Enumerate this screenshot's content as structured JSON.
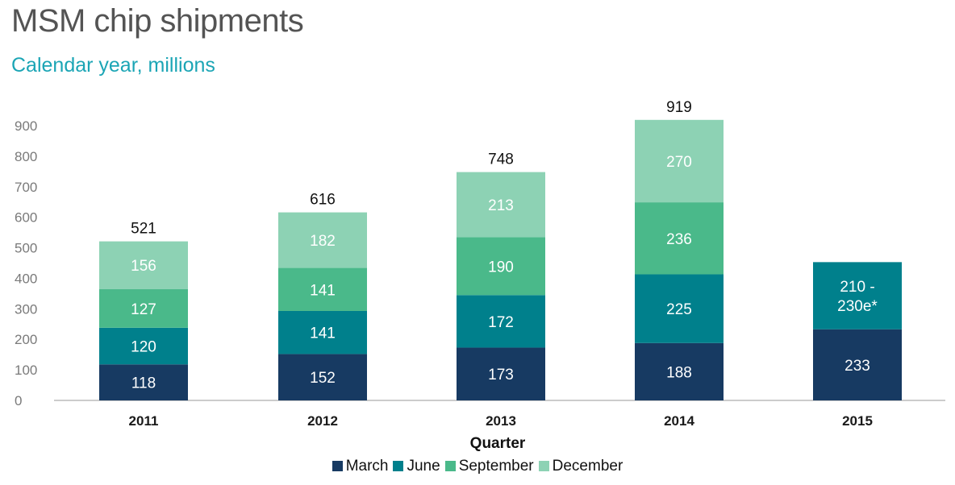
{
  "chart_data": {
    "type": "bar",
    "stacked": true,
    "title": "MSM chip shipments",
    "subtitle": "Calendar year, millions",
    "xlabel": "Quarter",
    "ylabel": "",
    "ylim": [
      0,
      900
    ],
    "yticks": [
      0,
      100,
      200,
      300,
      400,
      500,
      600,
      700,
      800,
      900
    ],
    "grid": false,
    "legend_position": "bottom",
    "categories": [
      "2011",
      "2012",
      "2013",
      "2014",
      "2015"
    ],
    "series": [
      {
        "name": "March",
        "color": "#173a62",
        "values": [
          118,
          152,
          173,
          188,
          233
        ],
        "labels": [
          "118",
          "152",
          "173",
          "188",
          "233"
        ]
      },
      {
        "name": "June",
        "color": "#00808c",
        "values": [
          120,
          141,
          172,
          225,
          220
        ],
        "labels": [
          "120",
          "141",
          "172",
          "225",
          "210 -|230e*"
        ]
      },
      {
        "name": "September",
        "color": "#4ab98a",
        "values": [
          127,
          141,
          190,
          236,
          null
        ],
        "labels": [
          "127",
          "141",
          "190",
          "236",
          ""
        ]
      },
      {
        "name": "December",
        "color": "#8dd2b4",
        "values": [
          156,
          182,
          213,
          270,
          null
        ],
        "labels": [
          "156",
          "182",
          "213",
          "270",
          ""
        ]
      }
    ],
    "totals": [
      "521",
      "616",
      "748",
      "919",
      ""
    ]
  }
}
